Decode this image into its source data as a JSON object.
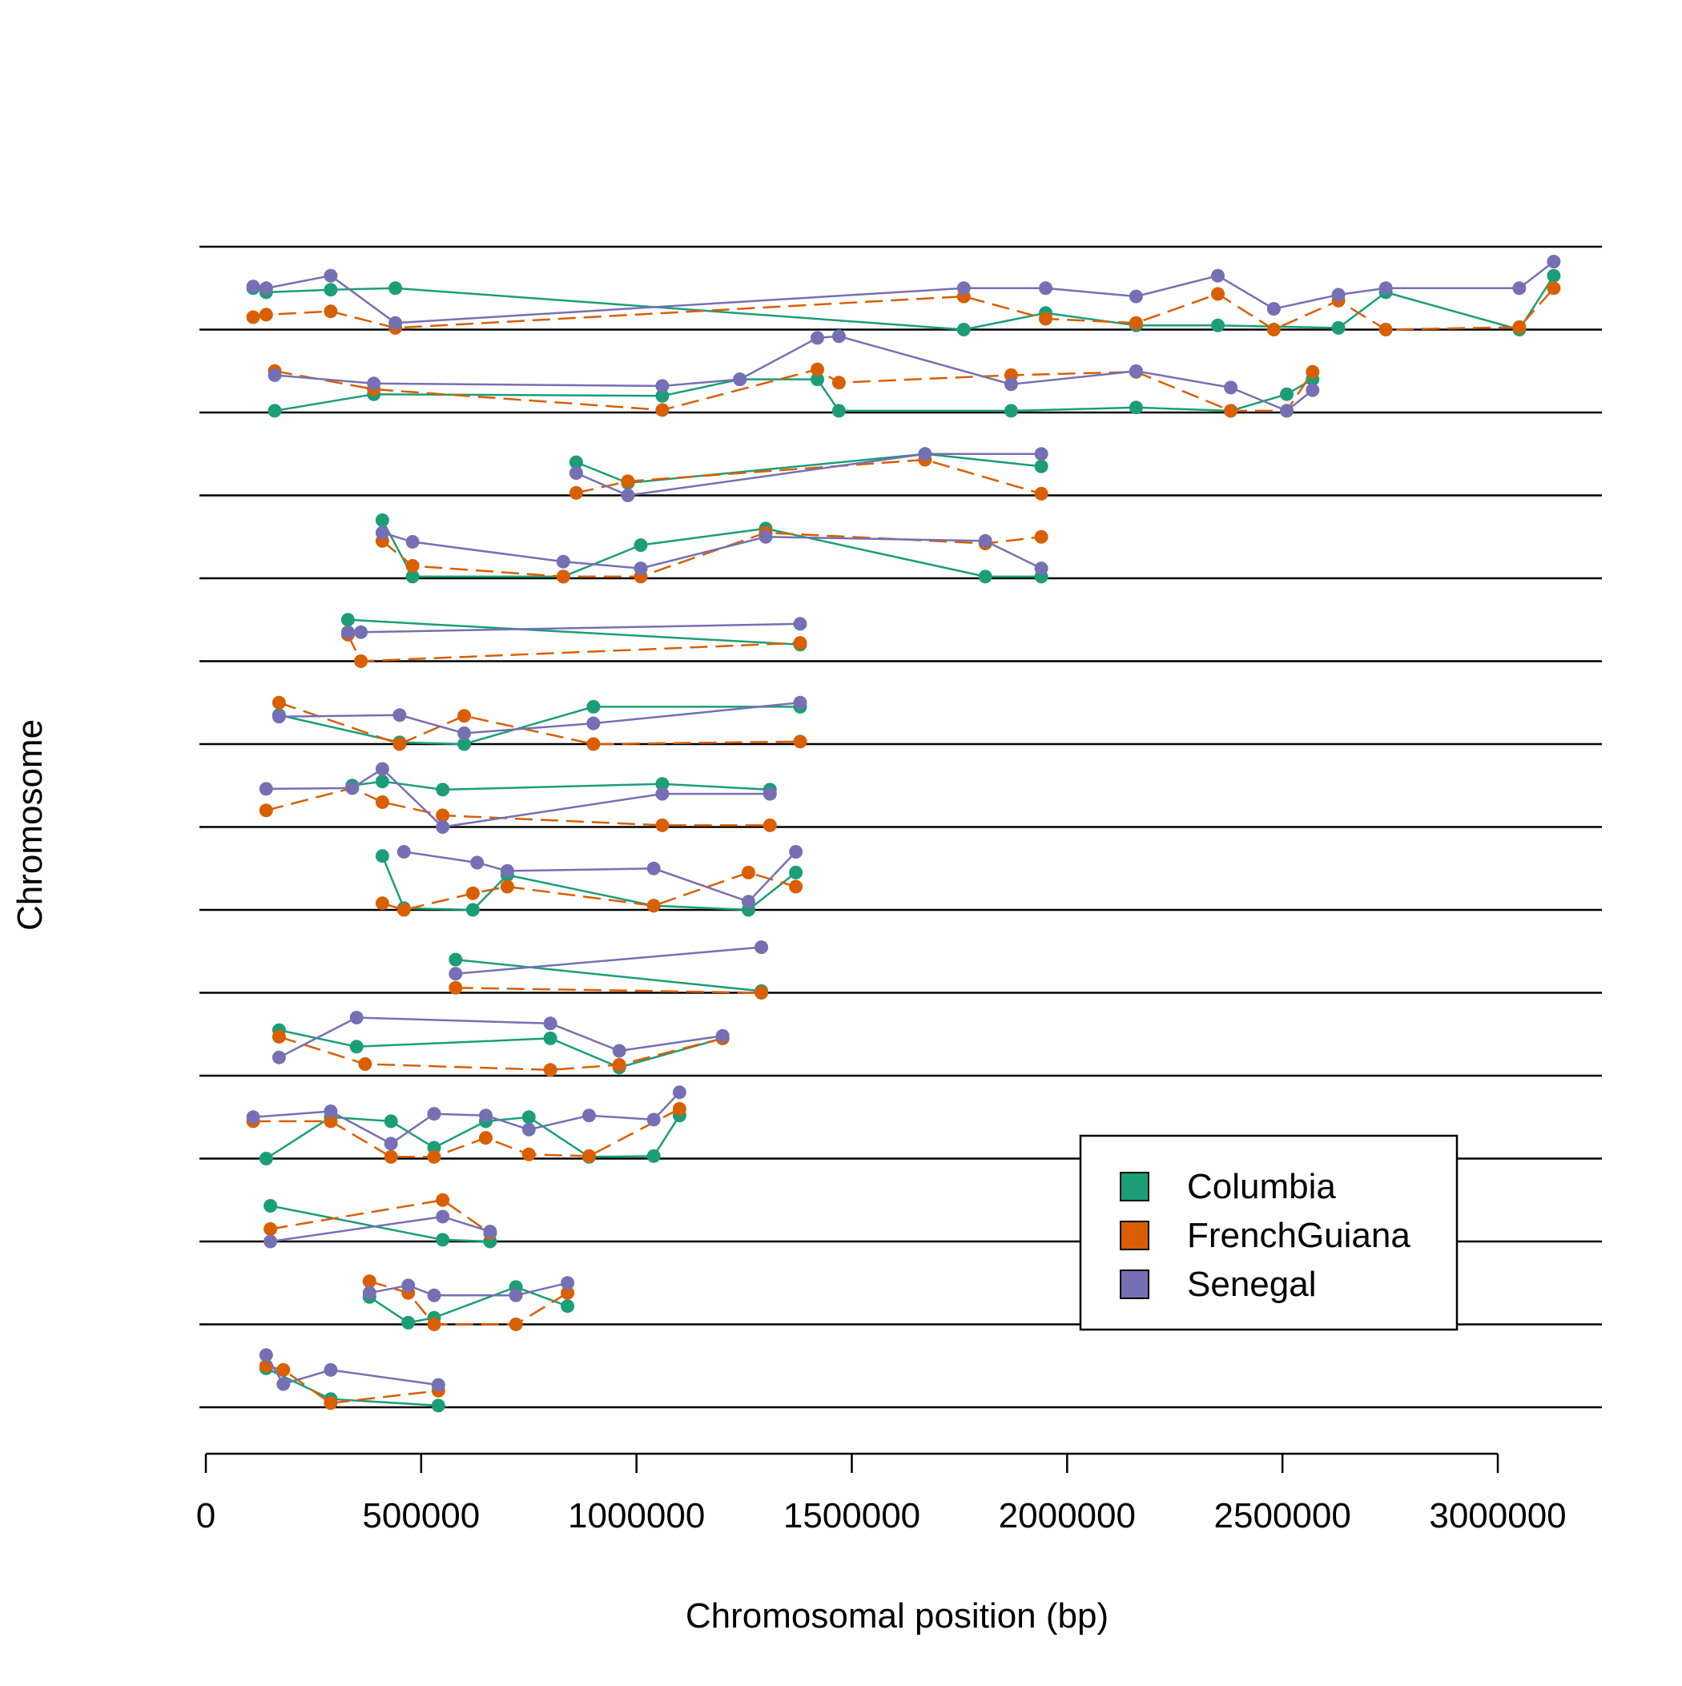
{
  "chart_data": {
    "type": "line",
    "title": "",
    "xlabel": "Chromosomal position (bp)",
    "ylabel": "Chromosome",
    "xlim": [
      -20000,
      3240000
    ],
    "x_ticks": [
      0,
      500000,
      1000000,
      1500000,
      2000000,
      2500000,
      3000000
    ],
    "x_tick_labels": [
      "0",
      "500000",
      "1000000",
      "1500000",
      "2000000",
      "2500000",
      "3000000"
    ],
    "grid": false,
    "legend": {
      "position": "bottom-right",
      "entries": [
        "Columbia",
        "FrenchGuiana",
        "Senegal"
      ]
    },
    "colors": {
      "Columbia": "#1b9e77",
      "FrenchGuiana": "#d95f02",
      "Senegal": "#7570b3",
      "axis": "#000000"
    },
    "chromosome_rows": 14,
    "series": [
      {
        "name": "Columbia",
        "chromosomes": [
          {
            "x": [
              110000,
              140000,
              290000,
              440000,
              1760000,
              1950000,
              2160000,
              2350000,
              2630000,
              2740000,
              3050000,
              3130000
            ],
            "y": [
              0.5,
              0.45,
              0.48,
              0.5,
              0.0,
              0.2,
              0.05,
              0.05,
              0.02,
              0.45,
              0.0,
              0.65
            ]
          },
          {
            "x": [
              160000,
              390000,
              1060000,
              1240000,
              1420000,
              1470000,
              1870000,
              2160000,
              2380000,
              2510000,
              2570000
            ],
            "y": [
              0.02,
              0.22,
              0.2,
              0.4,
              0.4,
              0.02,
              0.02,
              0.06,
              0.02,
              0.22,
              0.4
            ]
          },
          {
            "x": [
              860000,
              980000,
              1670000,
              1940000
            ],
            "y": [
              0.4,
              0.15,
              0.5,
              0.35
            ]
          },
          {
            "x": [
              410000,
              480000,
              830000,
              1010000,
              1300000,
              1810000,
              1940000
            ],
            "y": [
              0.7,
              0.02,
              0.02,
              0.4,
              0.6,
              0.02,
              0.02
            ]
          },
          {
            "x": [
              330000,
              1380000
            ],
            "y": [
              0.5,
              0.2
            ]
          },
          {
            "x": [
              170000,
              450000,
              600000,
              900000,
              1380000
            ],
            "y": [
              0.35,
              0.02,
              0.0,
              0.45,
              0.45
            ]
          },
          {
            "x": [
              340000,
              410000,
              550000,
              1060000,
              1310000
            ],
            "y": [
              0.5,
              0.55,
              0.45,
              0.52,
              0.45
            ]
          },
          {
            "x": [
              410000,
              460000,
              620000,
              700000,
              1040000,
              1260000,
              1370000
            ],
            "y": [
              0.65,
              0.02,
              0.0,
              0.42,
              0.05,
              0.0,
              0.45
            ]
          },
          {
            "x": [
              580000,
              1290000
            ],
            "y": [
              0.4,
              0.02
            ]
          },
          {
            "x": [
              170000,
              350000,
              800000,
              960000,
              1200000
            ],
            "y": [
              0.55,
              0.35,
              0.45,
              0.1,
              0.45
            ]
          },
          {
            "x": [
              140000,
              290000,
              430000,
              530000,
              650000,
              750000,
              890000,
              1040000,
              1100000
            ],
            "y": [
              0.0,
              0.5,
              0.45,
              0.13,
              0.45,
              0.5,
              0.02,
              0.03,
              0.52
            ]
          },
          {
            "x": [
              150000,
              550000,
              660000
            ],
            "y": [
              0.43,
              0.02,
              0.0
            ]
          },
          {
            "x": [
              380000,
              470000,
              530000,
              720000,
              840000
            ],
            "y": [
              0.33,
              0.02,
              0.08,
              0.45,
              0.22
            ]
          },
          {
            "x": [
              140000,
              290000,
              540000
            ],
            "y": [
              0.47,
              0.1,
              0.02
            ]
          }
        ]
      },
      {
        "name": "FrenchGuiana",
        "chromosomes": [
          {
            "x": [
              110000,
              140000,
              290000,
              440000,
              1760000,
              1950000,
              2160000,
              2350000,
              2480000,
              2630000,
              2740000,
              3050000,
              3130000
            ],
            "y": [
              0.15,
              0.18,
              0.22,
              0.02,
              0.4,
              0.13,
              0.08,
              0.43,
              0.0,
              0.35,
              0.0,
              0.03,
              0.5
            ]
          },
          {
            "x": [
              160000,
              390000,
              1060000,
              1420000,
              1470000,
              1870000,
              2160000,
              2380000,
              2510000,
              2570000
            ],
            "y": [
              0.5,
              0.28,
              0.03,
              0.52,
              0.36,
              0.45,
              0.49,
              0.02,
              0.02,
              0.49
            ]
          },
          {
            "x": [
              860000,
              980000,
              1670000,
              1940000
            ],
            "y": [
              0.03,
              0.17,
              0.43,
              0.02
            ]
          },
          {
            "x": [
              410000,
              480000,
              830000,
              1010000,
              1300000,
              1810000,
              1940000
            ],
            "y": [
              0.45,
              0.15,
              0.02,
              0.02,
              0.55,
              0.42,
              0.5
            ]
          },
          {
            "x": [
              330000,
              360000,
              1380000
            ],
            "y": [
              0.32,
              0.0,
              0.22
            ]
          },
          {
            "x": [
              170000,
              450000,
              600000,
              900000,
              1380000
            ],
            "y": [
              0.5,
              0.0,
              0.34,
              0.0,
              0.03
            ]
          },
          {
            "x": [
              140000,
              340000,
              410000,
              550000,
              1060000,
              1310000
            ],
            "y": [
              0.2,
              0.47,
              0.3,
              0.14,
              0.02,
              0.02
            ]
          },
          {
            "x": [
              410000,
              460000,
              620000,
              700000,
              1040000,
              1260000,
              1370000
            ],
            "y": [
              0.08,
              0.0,
              0.2,
              0.28,
              0.05,
              0.45,
              0.28
            ]
          },
          {
            "x": [
              580000,
              1290000
            ],
            "y": [
              0.06,
              0.0
            ]
          },
          {
            "x": [
              170000,
              370000,
              800000,
              960000,
              1200000
            ],
            "y": [
              0.47,
              0.14,
              0.07,
              0.13,
              0.45
            ]
          },
          {
            "x": [
              110000,
              290000,
              430000,
              530000,
              650000,
              750000,
              890000,
              1100000
            ],
            "y": [
              0.45,
              0.45,
              0.02,
              0.02,
              0.25,
              0.05,
              0.03,
              0.6
            ]
          },
          {
            "x": [
              150000,
              550000,
              660000
            ],
            "y": [
              0.15,
              0.5,
              0.1
            ]
          },
          {
            "x": [
              380000,
              470000,
              530000,
              720000,
              840000
            ],
            "y": [
              0.52,
              0.38,
              0.0,
              0.0,
              0.38
            ]
          },
          {
            "x": [
              140000,
              180000,
              290000,
              540000
            ],
            "y": [
              0.5,
              0.45,
              0.05,
              0.2
            ]
          }
        ]
      },
      {
        "name": "Senegal",
        "chromosomes": [
          {
            "x": [
              110000,
              140000,
              290000,
              440000,
              1760000,
              1950000,
              2160000,
              2350000,
              2480000,
              2630000,
              2740000,
              3050000,
              3130000
            ],
            "y": [
              0.52,
              0.5,
              0.65,
              0.08,
              0.5,
              0.5,
              0.4,
              0.65,
              0.25,
              0.42,
              0.5,
              0.5,
              0.82
            ]
          },
          {
            "x": [
              160000,
              390000,
              1060000,
              1240000,
              1420000,
              1470000,
              1870000,
              2160000,
              2380000,
              2510000,
              2570000
            ],
            "y": [
              0.45,
              0.35,
              0.32,
              0.4,
              0.9,
              0.92,
              0.34,
              0.5,
              0.3,
              0.02,
              0.27
            ]
          },
          {
            "x": [
              860000,
              980000,
              1670000,
              1940000
            ],
            "y": [
              0.27,
              0.0,
              0.5,
              0.5
            ]
          },
          {
            "x": [
              410000,
              480000,
              830000,
              1010000,
              1300000,
              1810000,
              1940000
            ],
            "y": [
              0.55,
              0.44,
              0.2,
              0.12,
              0.5,
              0.45,
              0.12
            ]
          },
          {
            "x": [
              330000,
              360000,
              1380000
            ],
            "y": [
              0.35,
              0.35,
              0.45
            ]
          },
          {
            "x": [
              170000,
              450000,
              600000,
              900000,
              1380000
            ],
            "y": [
              0.33,
              0.35,
              0.13,
              0.25,
              0.5
            ]
          },
          {
            "x": [
              140000,
              340000,
              410000,
              550000,
              1060000,
              1310000
            ],
            "y": [
              0.46,
              0.47,
              0.7,
              0.0,
              0.4,
              0.4
            ]
          },
          {
            "x": [
              460000,
              630000,
              700000,
              1040000,
              1260000,
              1370000
            ],
            "y": [
              0.7,
              0.57,
              0.47,
              0.5,
              0.1,
              0.7
            ]
          },
          {
            "x": [
              580000,
              1290000
            ],
            "y": [
              0.23,
              0.55
            ]
          },
          {
            "x": [
              170000,
              350000,
              800000,
              960000,
              1200000
            ],
            "y": [
              0.22,
              0.7,
              0.63,
              0.3,
              0.48
            ]
          },
          {
            "x": [
              110000,
              290000,
              430000,
              530000,
              650000,
              750000,
              890000,
              1040000,
              1100000
            ],
            "y": [
              0.5,
              0.57,
              0.18,
              0.54,
              0.52,
              0.35,
              0.52,
              0.47,
              0.8
            ]
          },
          {
            "x": [
              150000,
              550000,
              660000
            ],
            "y": [
              0.0,
              0.3,
              0.12
            ]
          },
          {
            "x": [
              380000,
              470000,
              530000,
              720000,
              840000
            ],
            "y": [
              0.38,
              0.47,
              0.35,
              0.35,
              0.5
            ]
          },
          {
            "x": [
              140000,
              180000,
              290000,
              540000
            ],
            "y": [
              0.63,
              0.28,
              0.45,
              0.27
            ]
          }
        ]
      }
    ]
  }
}
